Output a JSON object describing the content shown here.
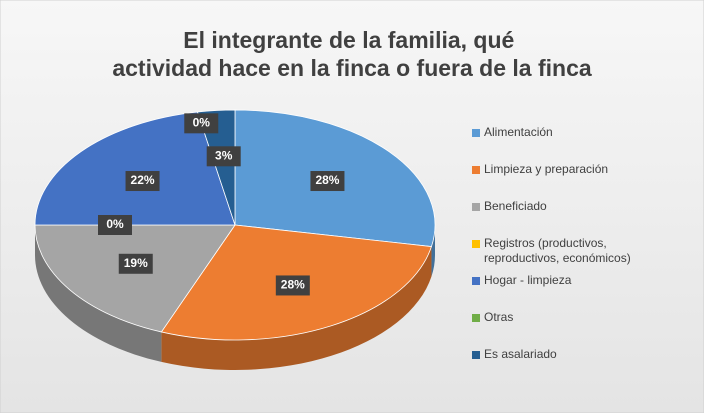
{
  "chart_data": {
    "type": "pie",
    "title": "El integrante de la familia, qué actividad hace en la finca o fuera de la finca",
    "categories": [
      "Alimentación",
      "Limpieza y preparación",
      "Beneficiado",
      "Registros (productivos, reproductivos, económicos)",
      "Hogar - limpieza",
      "Otras",
      "Es asalariado"
    ],
    "values": [
      28,
      28,
      19,
      0,
      22,
      0,
      3
    ],
    "value_labels": [
      "28%",
      "28%",
      "19%",
      "0%",
      "22%",
      "0%",
      "3%"
    ],
    "colors": [
      "#5b9bd5",
      "#ed7d31",
      "#a5a5a5",
      "#ffc000",
      "#4472c4",
      "#70ad47",
      "#255e91"
    ],
    "legend": "right"
  }
}
